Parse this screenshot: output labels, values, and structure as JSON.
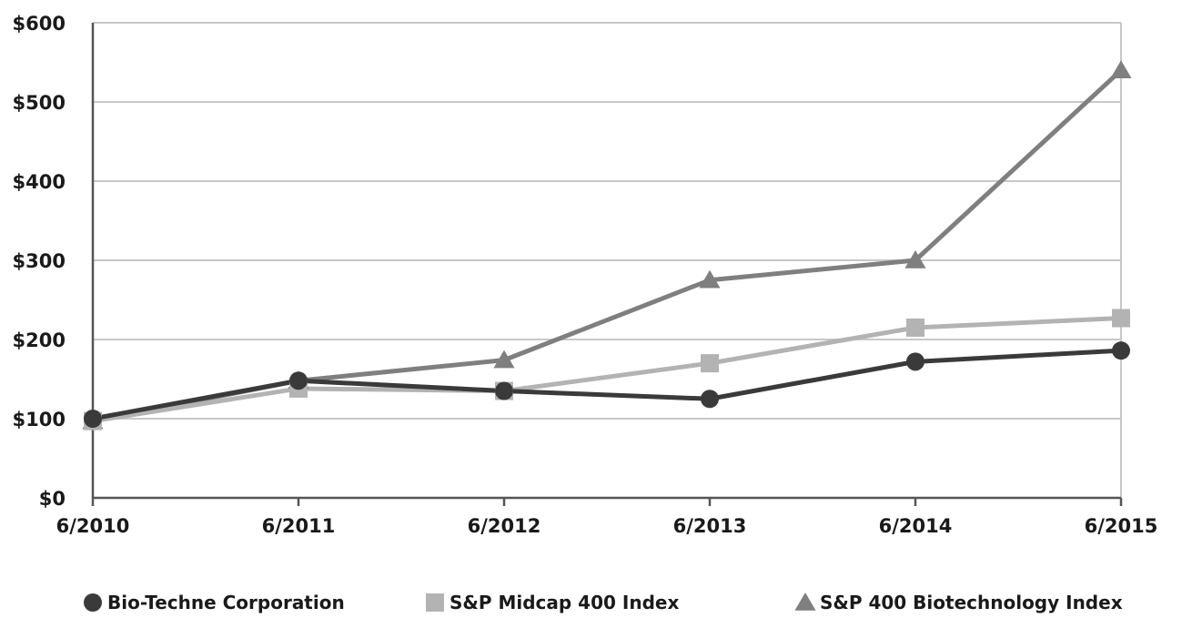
{
  "chart_data": {
    "type": "line",
    "x": [
      "6/2010",
      "6/2011",
      "6/2012",
      "6/2013",
      "6/2014",
      "6/2015"
    ],
    "ylim": [
      0,
      600
    ],
    "yticks": [
      0,
      100,
      200,
      300,
      400,
      500,
      600
    ],
    "ytick_labels": [
      "$0",
      "$100",
      "$200",
      "$300",
      "$400",
      "$500",
      "$600"
    ],
    "grid": true,
    "legend_position": "bottom",
    "series": [
      {
        "name": "Bio-Techne Corporation",
        "values": [
          100,
          148,
          135,
          125,
          172,
          186
        ],
        "marker": "circle",
        "color": "#3a3a3a"
      },
      {
        "name": "S&P Midcap 400 Index",
        "values": [
          97,
          138,
          135,
          170,
          215,
          227
        ],
        "marker": "square",
        "color": "#b3b3b3"
      },
      {
        "name": "S&P 400 Biotechnology Index",
        "values": [
          97,
          148,
          174,
          275,
          300,
          540
        ],
        "marker": "triangle",
        "color": "#7f7f7f"
      }
    ]
  }
}
